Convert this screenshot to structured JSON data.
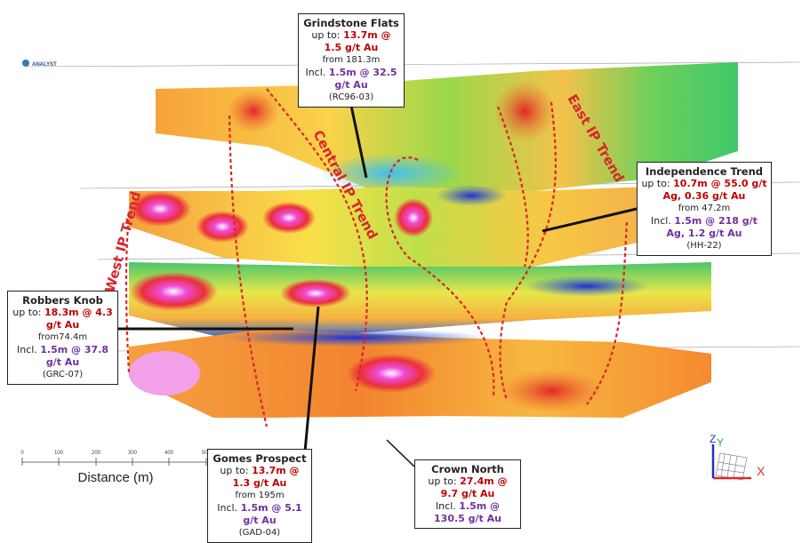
{
  "logo": "ANALYST",
  "callouts": [
    {
      "title": "Grindstone Flats",
      "prefix": "up to:",
      "grade": "13.7m @ 1.5 g/t Au",
      "from": "from 181.3m",
      "incl_prefix": "Incl.",
      "incl_grade": "1.5m @ 32.5 g/t Au",
      "hole": "(RC96-03)"
    },
    {
      "title": "Independence Trend",
      "prefix": "up to:",
      "grade": "10.7m @ 55.0 g/t Ag, 0.36 g/t Au",
      "from": "from 47.2m",
      "incl_prefix": "Incl.",
      "incl_grade": "1.5m @ 218 g/t Ag, 1.2 g/t Au",
      "hole": "(HH-22)"
    },
    {
      "title": "Robbers Knob",
      "prefix": "up to:",
      "grade": "18.3m @ 4.3 g/t Au",
      "from": "from74.4m",
      "incl_prefix": "Incl.",
      "incl_grade": "1.5m @ 37.8 g/t Au",
      "hole": "(GRC-07)"
    },
    {
      "title": "Gomes Prospect",
      "prefix": "up to:",
      "grade": "13.7m @ 1.3 g/t Au",
      "from": "from 195m",
      "incl_prefix": "Incl.",
      "incl_grade": "1.5m @ 5.1 g/t Au",
      "hole": "(GAD-04)"
    },
    {
      "title": "Crown North",
      "prefix": "up to:",
      "grade": "27.4m @ 9.7 g/t Au",
      "incl_prefix": "Incl.",
      "incl_grade": "1.5m @ 130.5 g/t Au"
    }
  ],
  "trends": [
    "Central IP Trend",
    "East IP Trend",
    "West IP Trend"
  ],
  "scale": {
    "ticks": [
      0,
      100,
      200,
      300,
      400,
      500
    ],
    "label": "Distance (m)"
  },
  "axes": {
    "z": "Z",
    "y": "Y",
    "x": "X"
  }
}
